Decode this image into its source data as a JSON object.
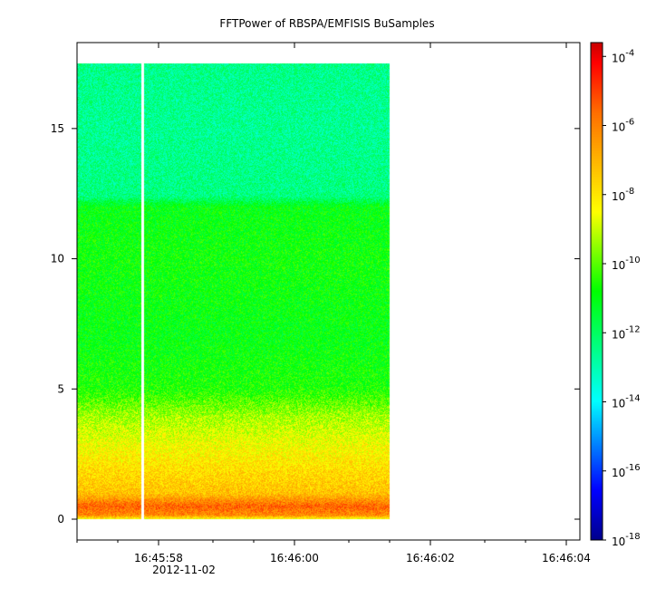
{
  "chart_data": {
    "type": "heatmap",
    "title": "FFTPower of RBSPA/EMFISIS  BuSamples",
    "xlabel": "",
    "ylabel": "",
    "x_axis": {
      "ticks": [
        {
          "t": 0,
          "label": "16:45:58"
        },
        {
          "t": 2,
          "label": "16:46:00"
        },
        {
          "t": 4,
          "label": "16:46:02"
        },
        {
          "t": 6,
          "label": "16:46:04"
        }
      ],
      "minor_ticks": [
        -1.2,
        -0.6,
        0.8,
        1.4,
        2.8,
        3.4,
        4.8,
        5.4
      ],
      "date_label": "2012-11-02",
      "range_seconds_from_first_tick": [
        -1.2,
        6.2
      ]
    },
    "y_axis": {
      "ticks": [
        0,
        5,
        10,
        15
      ],
      "range": [
        -0.8,
        18.3
      ]
    },
    "colorbar": {
      "scale": "log",
      "range_exponents": [
        -18,
        -3.6
      ],
      "tick_base": "10",
      "tick_exponents": [
        "-4",
        "-6",
        "-8",
        "-10",
        "-12",
        "-14",
        "-16",
        "-18"
      ]
    },
    "data_extent": {
      "t_start": -1.2,
      "t_end": 3.4,
      "freq_min": 0,
      "freq_max": 17.5,
      "gap_at_t": -0.24
    },
    "power_profile": [
      {
        "freq": 0.0,
        "log_power": -8.6
      },
      {
        "freq": 0.15,
        "log_power": -6.2
      },
      {
        "freq": 0.5,
        "log_power": -5.5
      },
      {
        "freq": 1.0,
        "log_power": -7.3
      },
      {
        "freq": 2.0,
        "log_power": -7.9
      },
      {
        "freq": 3.0,
        "log_power": -8.6
      },
      {
        "freq": 4.0,
        "log_power": -9.4
      },
      {
        "freq": 5.0,
        "log_power": -10.6
      },
      {
        "freq": 7.0,
        "log_power": -11.0
      },
      {
        "freq": 10.0,
        "log_power": -10.8
      },
      {
        "freq": 12.0,
        "log_power": -11.0
      },
      {
        "freq": 12.4,
        "log_power": -12.4
      },
      {
        "freq": 15.0,
        "log_power": -12.6
      },
      {
        "freq": 17.5,
        "log_power": -12.5
      }
    ]
  }
}
